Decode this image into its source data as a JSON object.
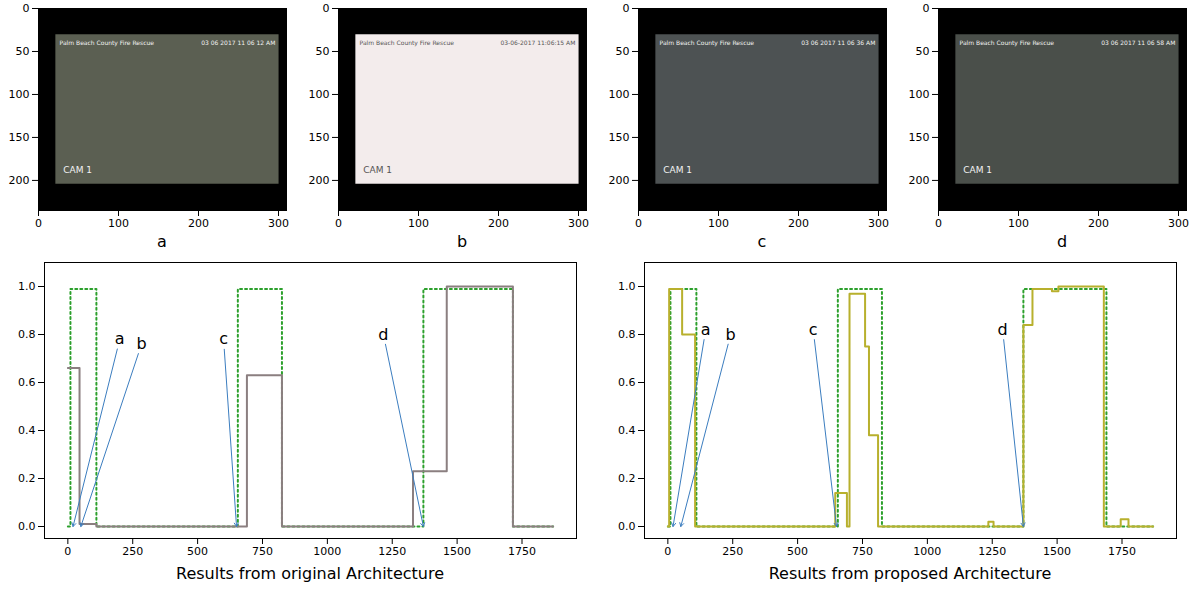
{
  "chart_data": [
    {
      "type": "image",
      "xlabel": "a",
      "xlim": [
        0,
        310
      ],
      "ylim": [
        235,
        0
      ],
      "xticks": [
        0,
        100,
        200,
        300
      ],
      "yticks": [
        0,
        50,
        100,
        150,
        200
      ],
      "color": "#5b5f52",
      "annotations": [
        "Palm Beach County Fire Rescue",
        "03 06 2017 11 06 12 AM",
        "CAM 1"
      ]
    },
    {
      "type": "image",
      "xlabel": "b",
      "xlim": [
        0,
        310
      ],
      "ylim": [
        235,
        0
      ],
      "xticks": [
        0,
        100,
        200,
        300
      ],
      "yticks": [
        0,
        50,
        100,
        150,
        200
      ],
      "color": "#f3ecec",
      "annotations": [
        "Palm Beach County Fire Rescue",
        "03-06-2017 11:06:15 AM",
        "CAM 1"
      ]
    },
    {
      "type": "image",
      "xlabel": "c",
      "xlim": [
        0,
        310
      ],
      "ylim": [
        235,
        0
      ],
      "xticks": [
        0,
        100,
        200,
        300
      ],
      "yticks": [
        0,
        50,
        100,
        150,
        200
      ],
      "color": "#4d5253",
      "annotations": [
        "Palm Beach County Fire Rescue",
        "03 06 2017 11 06 36 AM",
        "CAM 1"
      ]
    },
    {
      "type": "image",
      "xlabel": "d",
      "xlim": [
        0,
        310
      ],
      "ylim": [
        235,
        0
      ],
      "xticks": [
        0,
        100,
        200,
        300
      ],
      "yticks": [
        0,
        50,
        100,
        150,
        200
      ],
      "color": "#4a4f4a",
      "annotations": [
        "Palm Beach County Fire Rescue",
        "03 06 2017 11 06 58 AM",
        "CAM 1"
      ]
    },
    {
      "type": "line",
      "xlabel": "Results from original Architecture",
      "line_style": "step",
      "xlim": [
        -90,
        1960
      ],
      "ylim": [
        -0.05,
        1.1
      ],
      "xticks": [
        0,
        250,
        500,
        750,
        1000,
        1250,
        1500,
        1750
      ],
      "yticks": [
        {
          "value": 0,
          "label": "0.0"
        },
        {
          "value": 0.2,
          "label": "0.2"
        },
        {
          "value": 0.4,
          "label": "0.4"
        },
        {
          "value": 0.6,
          "label": "0.6"
        },
        {
          "value": 0.8,
          "label": "0.8"
        },
        {
          "value": 1,
          "label": "1.0"
        }
      ],
      "series": [
        {
          "color": "#2ca02c",
          "line_style": "dotted",
          "x": [
            0,
            10,
            110,
            655,
            825,
            1370,
            1715,
            1870
          ],
          "values": [
            0,
            0.99,
            0,
            0.99,
            0,
            0.99,
            0,
            0
          ]
        },
        {
          "color": "#8b7f80",
          "line_style": "solid",
          "x": [
            0,
            45,
            110,
            690,
            825,
            1330,
            1460,
            1715,
            1870
          ],
          "values": [
            0.66,
            0.01,
            0,
            0.63,
            0,
            0.23,
            1.0,
            0,
            0
          ]
        }
      ],
      "annotations": [
        {
          "text": "a",
          "x": 200,
          "y": 0.78,
          "target_x": 20,
          "target_y": 0
        },
        {
          "text": "b",
          "x": 284,
          "y": 0.76,
          "target_x": 50,
          "target_y": 0
        },
        {
          "text": "c",
          "x": 600,
          "y": 0.78,
          "target_x": 650,
          "target_y": 0
        },
        {
          "text": "d",
          "x": 1216,
          "y": 0.8,
          "target_x": 1370,
          "target_y": 0
        }
      ]
    },
    {
      "type": "line",
      "xlabel": "Results from proposed Architecture",
      "line_style": "step",
      "xlim": [
        -90,
        1960
      ],
      "ylim": [
        -0.05,
        1.1
      ],
      "xticks": [
        0,
        250,
        500,
        750,
        1000,
        1250,
        1500,
        1750
      ],
      "yticks": [
        {
          "value": 0,
          "label": "0.0"
        },
        {
          "value": 0.2,
          "label": "0.2"
        },
        {
          "value": 0.4,
          "label": "0.4"
        },
        {
          "value": 0.6,
          "label": "0.6"
        },
        {
          "value": 0.8,
          "label": "0.8"
        },
        {
          "value": 1,
          "label": "1.0"
        }
      ],
      "series": [
        {
          "color": "#2ca02c",
          "line_style": "dotted",
          "x": [
            0,
            10,
            110,
            655,
            825,
            1370,
            1690,
            1870
          ],
          "values": [
            0,
            0.99,
            0,
            0.99,
            0,
            0.99,
            0,
            0
          ]
        },
        {
          "color": "#b8b02d",
          "line_style": "solid",
          "x": [
            0,
            5,
            55,
            105,
            645,
            690,
            700,
            760,
            775,
            810,
            1235,
            1255,
            1370,
            1405,
            1480,
            1505,
            1680,
            1745,
            1775,
            1870
          ],
          "values": [
            0,
            0.99,
            0.8,
            0,
            0.14,
            0,
            0.97,
            0.75,
            0.38,
            0,
            0.02,
            0,
            0.84,
            0.99,
            0.98,
            1.0,
            0,
            0.03,
            0,
            0
          ]
        }
      ],
      "annotations": [
        {
          "text": "a",
          "x": 146,
          "y": 0.82,
          "target_x": 20,
          "target_y": 0
        },
        {
          "text": "b",
          "x": 242,
          "y": 0.8,
          "target_x": 50,
          "target_y": 0
        },
        {
          "text": "c",
          "x": 560,
          "y": 0.82,
          "target_x": 650,
          "target_y": 0
        },
        {
          "text": "d",
          "x": 1290,
          "y": 0.82,
          "target_x": 1370,
          "target_y": 0
        }
      ]
    }
  ]
}
